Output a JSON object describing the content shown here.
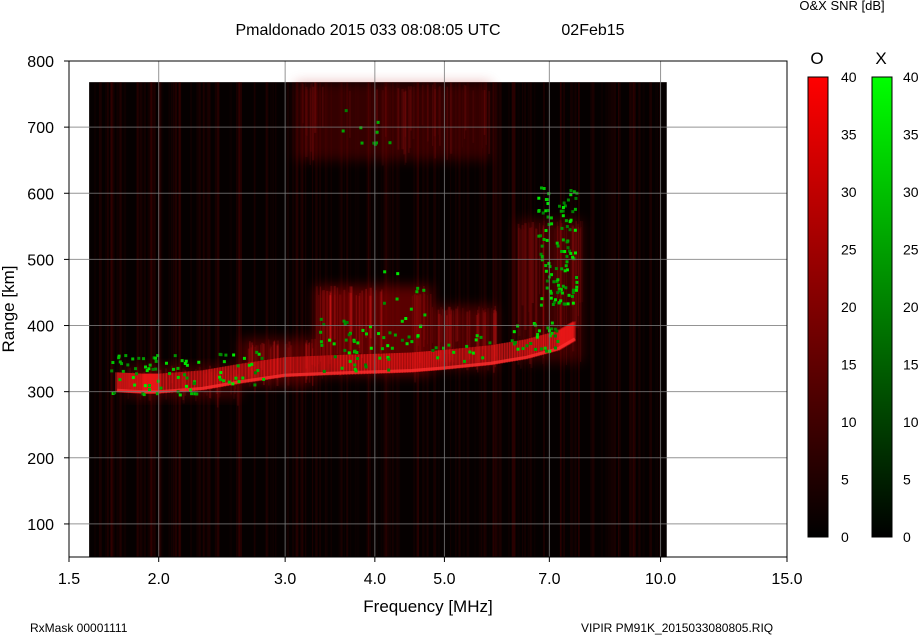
{
  "header": {
    "title": "Pmaldonado 2015 033 08:08:05 UTC",
    "date": "02Feb15",
    "snr_label": "O&X SNR [dB]"
  },
  "footer": {
    "rxmask": "RxMask 00001111",
    "filename": "VIPIR  PM91K_2015033080805.RIQ"
  },
  "chart_data": {
    "type": "heatmap",
    "title": "Pmaldonado 2015 033 08:08:05 UTC",
    "xlabel": "Frequency [MHz]",
    "ylabel": "Range [km]",
    "x_scale": "log",
    "xlim": [
      1.5,
      15.0
    ],
    "ylim": [
      50,
      800
    ],
    "x_ticks": [
      {
        "value": 1.5,
        "label": "1.5"
      },
      {
        "value": 2.0,
        "label": "2.0"
      },
      {
        "value": 3.0,
        "label": "3.0"
      },
      {
        "value": 4.0,
        "label": "4.0"
      },
      {
        "value": 5.0,
        "label": "5.0"
      },
      {
        "value": 7.0,
        "label": "7.0"
      },
      {
        "value": 10.0,
        "label": "10.0"
      },
      {
        "value": 15.0,
        "label": "15.0"
      }
    ],
    "y_ticks": [
      {
        "value": 100,
        "label": "100"
      },
      {
        "value": 200,
        "label": "200"
      },
      {
        "value": 300,
        "label": "300"
      },
      {
        "value": 400,
        "label": "400"
      },
      {
        "value": 500,
        "label": "500"
      },
      {
        "value": 600,
        "label": "600"
      },
      {
        "value": 700,
        "label": "700"
      },
      {
        "value": 800,
        "label": "800"
      }
    ],
    "grid": true,
    "data_extent": {
      "freq": [
        1.6,
        10.2
      ],
      "range": [
        50,
        768
      ]
    },
    "colorbars": [
      {
        "name": "O",
        "color": "#ff0000",
        "range": [
          0,
          40
        ],
        "ticks": [
          "0",
          "5",
          "10",
          "15",
          "20",
          "25",
          "30",
          "35",
          "40"
        ]
      },
      {
        "name": "X",
        "color": "#00ff00",
        "range": [
          0,
          40
        ],
        "ticks": [
          "0",
          "5",
          "10",
          "15",
          "20",
          "25",
          "30",
          "35",
          "40"
        ]
      }
    ],
    "o_trace": [
      {
        "freq": 1.75,
        "range": 302
      },
      {
        "freq": 1.9,
        "range": 300
      },
      {
        "freq": 2.0,
        "range": 300
      },
      {
        "freq": 2.3,
        "range": 305
      },
      {
        "freq": 2.6,
        "range": 315
      },
      {
        "freq": 3.0,
        "range": 325
      },
      {
        "freq": 3.5,
        "range": 328
      },
      {
        "freq": 4.0,
        "range": 330
      },
      {
        "freq": 4.5,
        "range": 332
      },
      {
        "freq": 5.0,
        "range": 336
      },
      {
        "freq": 5.8,
        "range": 343
      },
      {
        "freq": 6.5,
        "range": 352
      },
      {
        "freq": 7.2,
        "range": 365
      },
      {
        "freq": 7.6,
        "range": 380
      }
    ],
    "x_clusters": [
      {
        "freq": 2.0,
        "range": 325,
        "df": 0.28,
        "dr": 30,
        "n": 60
      },
      {
        "freq": 2.6,
        "range": 335,
        "df": 0.2,
        "dr": 25,
        "n": 25
      },
      {
        "freq": 3.8,
        "range": 370,
        "df": 0.45,
        "dr": 40,
        "n": 45
      },
      {
        "freq": 4.4,
        "range": 430,
        "df": 0.3,
        "dr": 60,
        "n": 20
      },
      {
        "freq": 5.3,
        "range": 365,
        "df": 0.5,
        "dr": 20,
        "n": 15
      },
      {
        "freq": 6.7,
        "range": 385,
        "df": 0.5,
        "dr": 25,
        "n": 30
      },
      {
        "freq": 7.2,
        "range": 520,
        "df": 0.45,
        "dr": 90,
        "n": 110
      },
      {
        "freq": 3.9,
        "range": 700,
        "df": 0.3,
        "dr": 30,
        "n": 10
      }
    ],
    "echo_regions": [
      {
        "freq": [
          1.8,
          2.6
        ],
        "range": [
          290,
          340
        ],
        "intensity": 0.55
      },
      {
        "freq": [
          2.6,
          3.3
        ],
        "range": [
          310,
          380
        ],
        "intensity": 0.75
      },
      {
        "freq": [
          3.3,
          4.8
        ],
        "range": [
          325,
          460
        ],
        "intensity": 0.9
      },
      {
        "freq": [
          4.8,
          5.9
        ],
        "range": [
          335,
          430
        ],
        "intensity": 0.7
      },
      {
        "freq": [
          6.3,
          7.8
        ],
        "range": [
          345,
          560
        ],
        "intensity": 0.55
      },
      {
        "freq": [
          3.1,
          5.8
        ],
        "range": [
          650,
          768
        ],
        "intensity": 0.5
      }
    ]
  }
}
